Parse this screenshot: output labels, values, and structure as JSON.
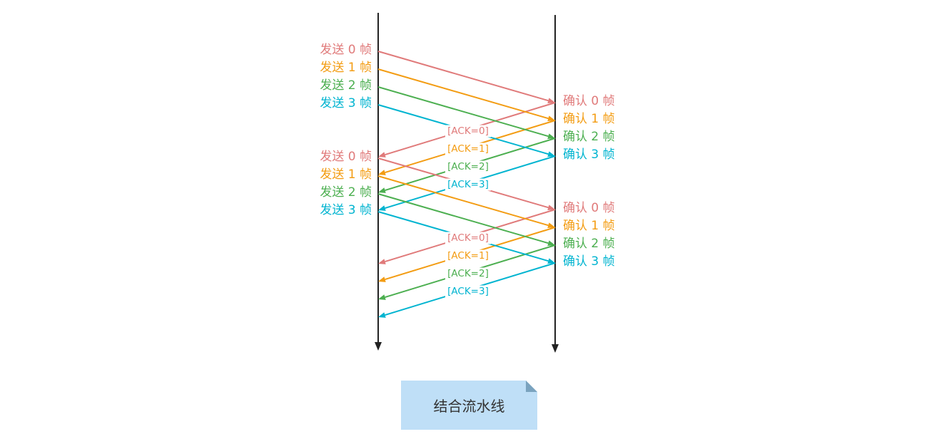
{
  "colors": {
    "frame0": "#e07a7a",
    "frame1": "#f39c12",
    "frame2": "#4caf50",
    "frame3": "#00b4d0",
    "axis": "#222222",
    "note_fill": "#bfdff7",
    "note_fold": "#7aa3bf"
  },
  "rounds": [
    {
      "send_labels": [
        "发送 0 帧",
        "发送 1 帧",
        "发送 2 帧",
        "发送 3 帧"
      ],
      "confirm_labels": [
        "确认 0 帧",
        "确认 1 帧",
        "确认 2 帧",
        "确认 3 帧"
      ],
      "ack_labels": [
        "[ACK=0]",
        "[ACK=1]",
        "[ACK=2]",
        "[ACK=3]"
      ]
    },
    {
      "send_labels": [
        "发送 0 帧",
        "发送 1 帧",
        "发送 2 帧",
        "发送 3 帧"
      ],
      "confirm_labels": [
        "确认 0 帧",
        "确认 1 帧",
        "确认 2 帧",
        "确认 3 帧"
      ],
      "ack_labels": [
        "[ACK=0]",
        "[ACK=1]",
        "[ACK=2]",
        "[ACK=3]"
      ]
    }
  ],
  "caption": "结合流水线"
}
